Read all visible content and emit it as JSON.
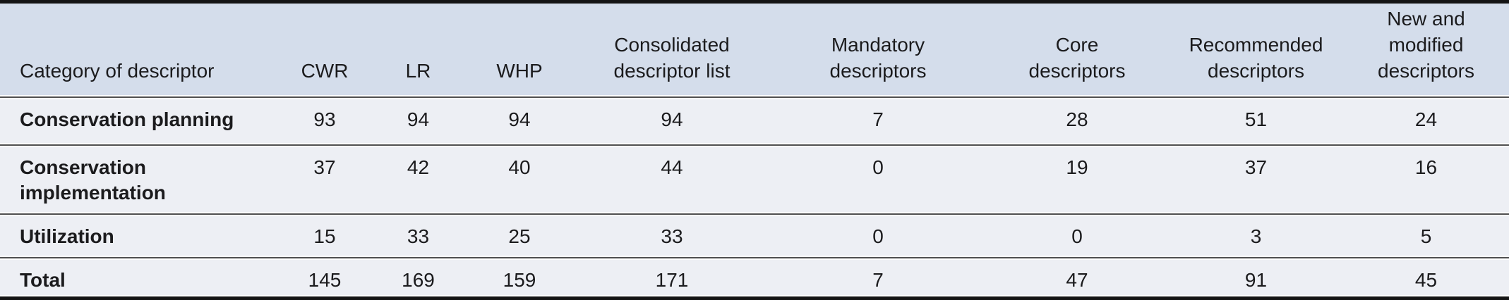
{
  "colors": {
    "header_bg": "#d4ddeb",
    "row_bg": "#edeff4",
    "separator": "#4f4f4f",
    "frame": "#141414",
    "text": "#1b1b1d"
  },
  "table": {
    "columns": [
      {
        "id": "category",
        "label": "Category of descriptor"
      },
      {
        "id": "cwr",
        "label": "CWR"
      },
      {
        "id": "lr",
        "label": "LR"
      },
      {
        "id": "whp",
        "label": "WHP"
      },
      {
        "id": "consolidated",
        "label": "Consolidated descriptor list"
      },
      {
        "id": "mandatory",
        "label": "Mandatory descriptors"
      },
      {
        "id": "core",
        "label": "Core descriptors"
      },
      {
        "id": "recommended",
        "label": "Recommended descriptors"
      },
      {
        "id": "new_modified",
        "label": "New and modified descriptors"
      }
    ],
    "rows": [
      {
        "category": "Conservation planning",
        "values": [
          93,
          94,
          94,
          94,
          7,
          28,
          51,
          24
        ]
      },
      {
        "category": "Conservation implementation",
        "values": [
          37,
          42,
          40,
          44,
          0,
          19,
          37,
          16
        ]
      },
      {
        "category": "Utilization",
        "values": [
          15,
          33,
          25,
          33,
          0,
          0,
          3,
          5
        ]
      },
      {
        "category": "Total",
        "values": [
          145,
          169,
          159,
          171,
          7,
          47,
          91,
          45
        ]
      }
    ]
  },
  "chart_data": {
    "type": "table",
    "columns": [
      "Category of descriptor",
      "CWR",
      "LR",
      "WHP",
      "Consolidated descriptor list",
      "Mandatory descriptors",
      "Core descriptors",
      "Recommended descriptors",
      "New and modified descriptors"
    ],
    "rows": [
      [
        "Conservation planning",
        93,
        94,
        94,
        94,
        7,
        28,
        51,
        24
      ],
      [
        "Conservation implementation",
        37,
        42,
        40,
        44,
        0,
        19,
        37,
        16
      ],
      [
        "Utilization",
        15,
        33,
        25,
        33,
        0,
        0,
        3,
        5
      ],
      [
        "Total",
        145,
        169,
        159,
        171,
        7,
        47,
        91,
        45
      ]
    ]
  }
}
